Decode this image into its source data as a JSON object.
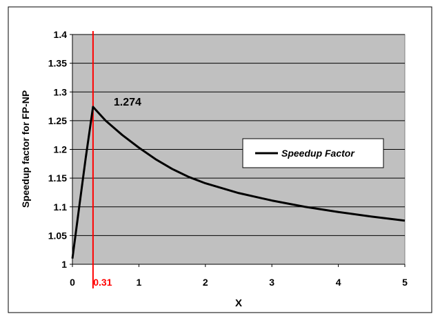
{
  "chart_data": {
    "type": "line",
    "xlabel": "X",
    "ylabel": "Speedup factor for FP-NP",
    "xlim": [
      0,
      5
    ],
    "ylim": [
      1,
      1.4
    ],
    "x_ticks": [
      "0",
      "1",
      "2",
      "3",
      "4",
      "5"
    ],
    "y_ticks": [
      "1",
      "1.05",
      "1.1",
      "1.15",
      "1.2",
      "1.25",
      "1.3",
      "1.35",
      "1.4"
    ],
    "grid": true,
    "legend": "center-right",
    "series": [
      {
        "name": "Speedup Factor",
        "color": "#000000",
        "x": [
          0,
          0.1,
          0.2,
          0.31,
          0.5,
          0.75,
          1.0,
          1.25,
          1.5,
          1.75,
          2.0,
          2.5,
          3.0,
          3.5,
          4.0,
          4.5,
          5.0
        ],
        "y": [
          1.01,
          1.098,
          1.185,
          1.274,
          1.25,
          1.225,
          1.203,
          1.183,
          1.166,
          1.152,
          1.141,
          1.124,
          1.111,
          1.1,
          1.091,
          1.083,
          1.076
        ]
      }
    ],
    "annotations": {
      "vline_x": 0.31,
      "vline_color": "#ff0000",
      "vline_label": "0.31",
      "peak_label": "1.274"
    },
    "colors": {
      "plot_background": "#c0c0c0",
      "gridline": "#000000",
      "page_background": "#ffffff"
    }
  }
}
